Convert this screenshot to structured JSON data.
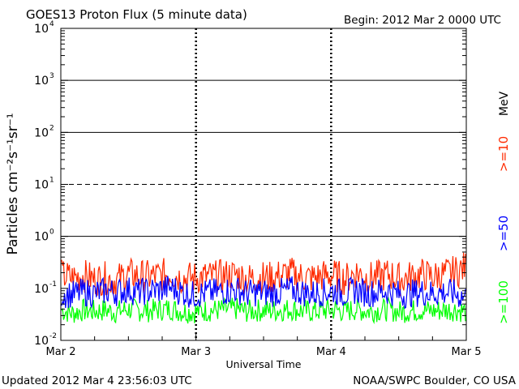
{
  "header": {
    "title": "GOES13 Proton Flux (5 minute data)",
    "begin": "Begin: 2012 Mar 2 0000 UTC"
  },
  "footer": {
    "updated": "Updated 2012 Mar  4 23:56:03 UTC",
    "credit": "NOAA/SWPC Boulder, CO USA"
  },
  "chart_data": {
    "type": "line",
    "title": "GOES13 Proton Flux (5 minute data)",
    "xlabel": "Universal Time",
    "ylabel": "Particles cm⁻²s⁻¹sr⁻¹",
    "yscale": "log",
    "ylim": [
      0.01,
      10000
    ],
    "xlim": [
      0,
      3
    ],
    "x_unit": "days since Mar 2 0000 UTC",
    "x_ticks": [
      {
        "value": 0,
        "label": "Mar 2"
      },
      {
        "value": 1,
        "label": "Mar 3"
      },
      {
        "value": 2,
        "label": "Mar 4"
      },
      {
        "value": 3,
        "label": "Mar 5"
      }
    ],
    "y_ticks": [
      {
        "value": 0.01,
        "base": "10",
        "exp": "-2"
      },
      {
        "value": 0.1,
        "base": "10",
        "exp": "-1"
      },
      {
        "value": 1,
        "base": "10",
        "exp": "0"
      },
      {
        "value": 10,
        "base": "10",
        "exp": "1"
      },
      {
        "value": 100,
        "base": "10",
        "exp": "2"
      },
      {
        "value": 1000,
        "base": "10",
        "exp": "3"
      },
      {
        "value": 10000,
        "base": "10",
        "exp": "4"
      }
    ],
    "threshold_lines": [
      {
        "value": 1,
        "style": "solid"
      },
      {
        "value": 10,
        "style": "dashed"
      },
      {
        "value": 100,
        "style": "solid"
      },
      {
        "value": 1000,
        "style": "solid"
      }
    ],
    "units_label": "MeV",
    "series": [
      {
        "name": ">=10",
        "color": "#ff2a00",
        "values": [
          0.19,
          0.17,
          0.19,
          0.16,
          0.17,
          0.15,
          0.2,
          0.19,
          0.18,
          0.19,
          0.21,
          0.17,
          0.17,
          0.18,
          0.18,
          0.19,
          0.2,
          0.16,
          0.18,
          0.17,
          0.19,
          0.21,
          0.18,
          0.17,
          0.19,
          0.19,
          0.16,
          0.22,
          0.17,
          0.18,
          0.2,
          0.16,
          0.18,
          0.2,
          0.18,
          0.2,
          0.22,
          0.27
        ]
      },
      {
        "name": ">=50",
        "color": "#0000ff",
        "values": [
          0.085,
          0.08,
          0.09,
          0.085,
          0.095,
          0.09,
          0.1,
          0.09,
          0.095,
          0.1,
          0.11,
          0.09,
          0.08,
          0.085,
          0.09,
          0.095,
          0.1,
          0.085,
          0.09,
          0.085,
          0.09,
          0.1,
          0.09,
          0.085,
          0.09,
          0.095,
          0.085,
          0.1,
          0.085,
          0.09,
          0.095,
          0.08,
          0.085,
          0.09,
          0.085,
          0.09,
          0.085,
          0.07
        ]
      },
      {
        "name": ">=100",
        "color": "#00ff00",
        "values": [
          0.04,
          0.035,
          0.04,
          0.038,
          0.04,
          0.037,
          0.042,
          0.04,
          0.039,
          0.041,
          0.043,
          0.038,
          0.037,
          0.039,
          0.04,
          0.041,
          0.042,
          0.038,
          0.04,
          0.039,
          0.04,
          0.042,
          0.039,
          0.038,
          0.04,
          0.041,
          0.038,
          0.042,
          0.038,
          0.04,
          0.041,
          0.037,
          0.039,
          0.04,
          0.039,
          0.04,
          0.041,
          0.038
        ]
      }
    ]
  }
}
